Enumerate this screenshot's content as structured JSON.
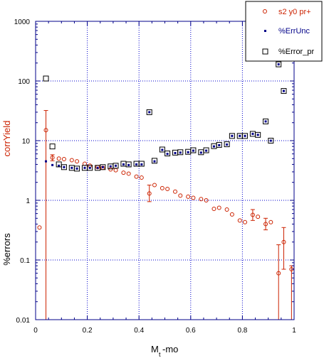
{
  "chart_data": {
    "type": "scatter",
    "xlabel_main": "M",
    "xlabel_sub": "t",
    "xlabel_tail": "-mo",
    "ylabel_top": "corrYield",
    "ylabel_bottom": "%errors",
    "xlim": [
      0,
      1
    ],
    "ylim": [
      0.01,
      1000
    ],
    "yscale": "log",
    "grid": true,
    "legend_position": "top-right",
    "x_ticks": [
      "0",
      "0.2",
      "0.4",
      "0.6",
      "0.8",
      "1"
    ],
    "y_ticks": [
      "0.01",
      "0.1",
      "1",
      "10",
      "100",
      "1000"
    ],
    "colors": {
      "yield": "#cc2200",
      "errunc": "#000088",
      "error_pr": "#000000",
      "grid": "#0000cc",
      "axes": "#000088"
    },
    "series": [
      {
        "name": "s2 y0 pr+",
        "marker": "open-circle",
        "points": [
          {
            "x": 0.015,
            "y": 0.35
          },
          {
            "x": 0.04,
            "y": 15,
            "lo": 0.01,
            "hi": 32
          },
          {
            "x": 0.065,
            "y": 5.2,
            "lo": 4.6,
            "hi": 5.8
          },
          {
            "x": 0.09,
            "y": 5.0
          },
          {
            "x": 0.11,
            "y": 4.9
          },
          {
            "x": 0.14,
            "y": 4.7
          },
          {
            "x": 0.16,
            "y": 4.5
          },
          {
            "x": 0.19,
            "y": 4.1
          },
          {
            "x": 0.21,
            "y": 3.8
          },
          {
            "x": 0.24,
            "y": 3.6
          },
          {
            "x": 0.26,
            "y": 3.5
          },
          {
            "x": 0.29,
            "y": 3.3
          },
          {
            "x": 0.31,
            "y": 3.2
          },
          {
            "x": 0.34,
            "y": 2.9
          },
          {
            "x": 0.36,
            "y": 2.8
          },
          {
            "x": 0.39,
            "y": 2.5
          },
          {
            "x": 0.41,
            "y": 2.4
          },
          {
            "x": 0.44,
            "y": 1.3,
            "lo": 0.95,
            "hi": 1.8
          },
          {
            "x": 0.46,
            "y": 1.8
          },
          {
            "x": 0.49,
            "y": 1.6
          },
          {
            "x": 0.51,
            "y": 1.55
          },
          {
            "x": 0.54,
            "y": 1.4
          },
          {
            "x": 0.56,
            "y": 1.2
          },
          {
            "x": 0.59,
            "y": 1.15
          },
          {
            "x": 0.61,
            "y": 1.1
          },
          {
            "x": 0.64,
            "y": 1.05
          },
          {
            "x": 0.66,
            "y": 1.0
          },
          {
            "x": 0.69,
            "y": 0.72
          },
          {
            "x": 0.71,
            "y": 0.75
          },
          {
            "x": 0.74,
            "y": 0.7
          },
          {
            "x": 0.76,
            "y": 0.58
          },
          {
            "x": 0.79,
            "y": 0.46
          },
          {
            "x": 0.81,
            "y": 0.43
          },
          {
            "x": 0.84,
            "y": 0.57,
            "lo": 0.46,
            "hi": 0.7
          },
          {
            "x": 0.86,
            "y": 0.53
          },
          {
            "x": 0.89,
            "y": 0.4,
            "lo": 0.32,
            "hi": 0.5
          },
          {
            "x": 0.91,
            "y": 0.43
          },
          {
            "x": 0.94,
            "y": 0.06,
            "lo": 0.01,
            "hi": 0.18
          },
          {
            "x": 0.96,
            "y": 0.2,
            "lo": 0.07,
            "hi": 0.35
          },
          {
            "x": 0.99,
            "y": 0.07,
            "lo": 0.01,
            "hi": 0.08
          }
        ]
      },
      {
        "name": "%ErrUnc",
        "marker": "small-filled-square",
        "points": [
          {
            "x": 0.04,
            "y": 4.5
          },
          {
            "x": 0.065,
            "y": 3.9
          },
          {
            "x": 0.09,
            "y": 3.8
          },
          {
            "x": 0.11,
            "y": 3.6
          },
          {
            "x": 0.14,
            "y": 3.5
          },
          {
            "x": 0.16,
            "y": 3.4
          },
          {
            "x": 0.19,
            "y": 3.5
          },
          {
            "x": 0.21,
            "y": 3.5
          },
          {
            "x": 0.24,
            "y": 3.5
          },
          {
            "x": 0.26,
            "y": 3.6
          },
          {
            "x": 0.29,
            "y": 3.7
          },
          {
            "x": 0.31,
            "y": 3.8
          },
          {
            "x": 0.34,
            "y": 4.0
          },
          {
            "x": 0.36,
            "y": 3.9
          },
          {
            "x": 0.39,
            "y": 4.0
          },
          {
            "x": 0.41,
            "y": 4.0
          },
          {
            "x": 0.44,
            "y": 30
          },
          {
            "x": 0.46,
            "y": 4.5
          },
          {
            "x": 0.49,
            "y": 7.0
          },
          {
            "x": 0.51,
            "y": 6.0
          },
          {
            "x": 0.54,
            "y": 6.2
          },
          {
            "x": 0.56,
            "y": 6.3
          },
          {
            "x": 0.59,
            "y": 6.4
          },
          {
            "x": 0.61,
            "y": 6.8
          },
          {
            "x": 0.64,
            "y": 6.3
          },
          {
            "x": 0.66,
            "y": 6.8
          },
          {
            "x": 0.69,
            "y": 8.0
          },
          {
            "x": 0.71,
            "y": 8.4
          },
          {
            "x": 0.74,
            "y": 8.6
          },
          {
            "x": 0.76,
            "y": 12
          },
          {
            "x": 0.79,
            "y": 12
          },
          {
            "x": 0.81,
            "y": 12
          },
          {
            "x": 0.84,
            "y": 13
          },
          {
            "x": 0.86,
            "y": 12.5
          },
          {
            "x": 0.89,
            "y": 21
          },
          {
            "x": 0.91,
            "y": 10
          },
          {
            "x": 0.94,
            "y": 190
          },
          {
            "x": 0.96,
            "y": 68
          }
        ]
      },
      {
        "name": "%Error_pr",
        "marker": "open-square",
        "points": [
          {
            "x": 0.04,
            "y": 110
          },
          {
            "x": 0.065,
            "y": 8.0
          },
          {
            "x": 0.09,
            "y": 4.0
          },
          {
            "x": 0.11,
            "y": 3.6
          },
          {
            "x": 0.14,
            "y": 3.5
          },
          {
            "x": 0.16,
            "y": 3.4
          },
          {
            "x": 0.19,
            "y": 3.5
          },
          {
            "x": 0.21,
            "y": 3.5
          },
          {
            "x": 0.24,
            "y": 3.5
          },
          {
            "x": 0.26,
            "y": 3.6
          },
          {
            "x": 0.29,
            "y": 3.7
          },
          {
            "x": 0.31,
            "y": 3.8
          },
          {
            "x": 0.34,
            "y": 4.1
          },
          {
            "x": 0.36,
            "y": 4.0
          },
          {
            "x": 0.39,
            "y": 4.1
          },
          {
            "x": 0.41,
            "y": 4.1
          },
          {
            "x": 0.44,
            "y": 30
          },
          {
            "x": 0.46,
            "y": 4.6
          },
          {
            "x": 0.49,
            "y": 7.1
          },
          {
            "x": 0.51,
            "y": 6.1
          },
          {
            "x": 0.54,
            "y": 6.3
          },
          {
            "x": 0.56,
            "y": 6.4
          },
          {
            "x": 0.59,
            "y": 6.5
          },
          {
            "x": 0.61,
            "y": 6.9
          },
          {
            "x": 0.64,
            "y": 6.4
          },
          {
            "x": 0.66,
            "y": 6.9
          },
          {
            "x": 0.69,
            "y": 8.1
          },
          {
            "x": 0.71,
            "y": 8.5
          },
          {
            "x": 0.74,
            "y": 8.7
          },
          {
            "x": 0.76,
            "y": 12
          },
          {
            "x": 0.79,
            "y": 12
          },
          {
            "x": 0.81,
            "y": 12
          },
          {
            "x": 0.84,
            "y": 13
          },
          {
            "x": 0.86,
            "y": 12.5
          },
          {
            "x": 0.89,
            "y": 21
          },
          {
            "x": 0.91,
            "y": 10
          },
          {
            "x": 0.94,
            "y": 190
          },
          {
            "x": 0.96,
            "y": 68
          }
        ]
      }
    ]
  }
}
